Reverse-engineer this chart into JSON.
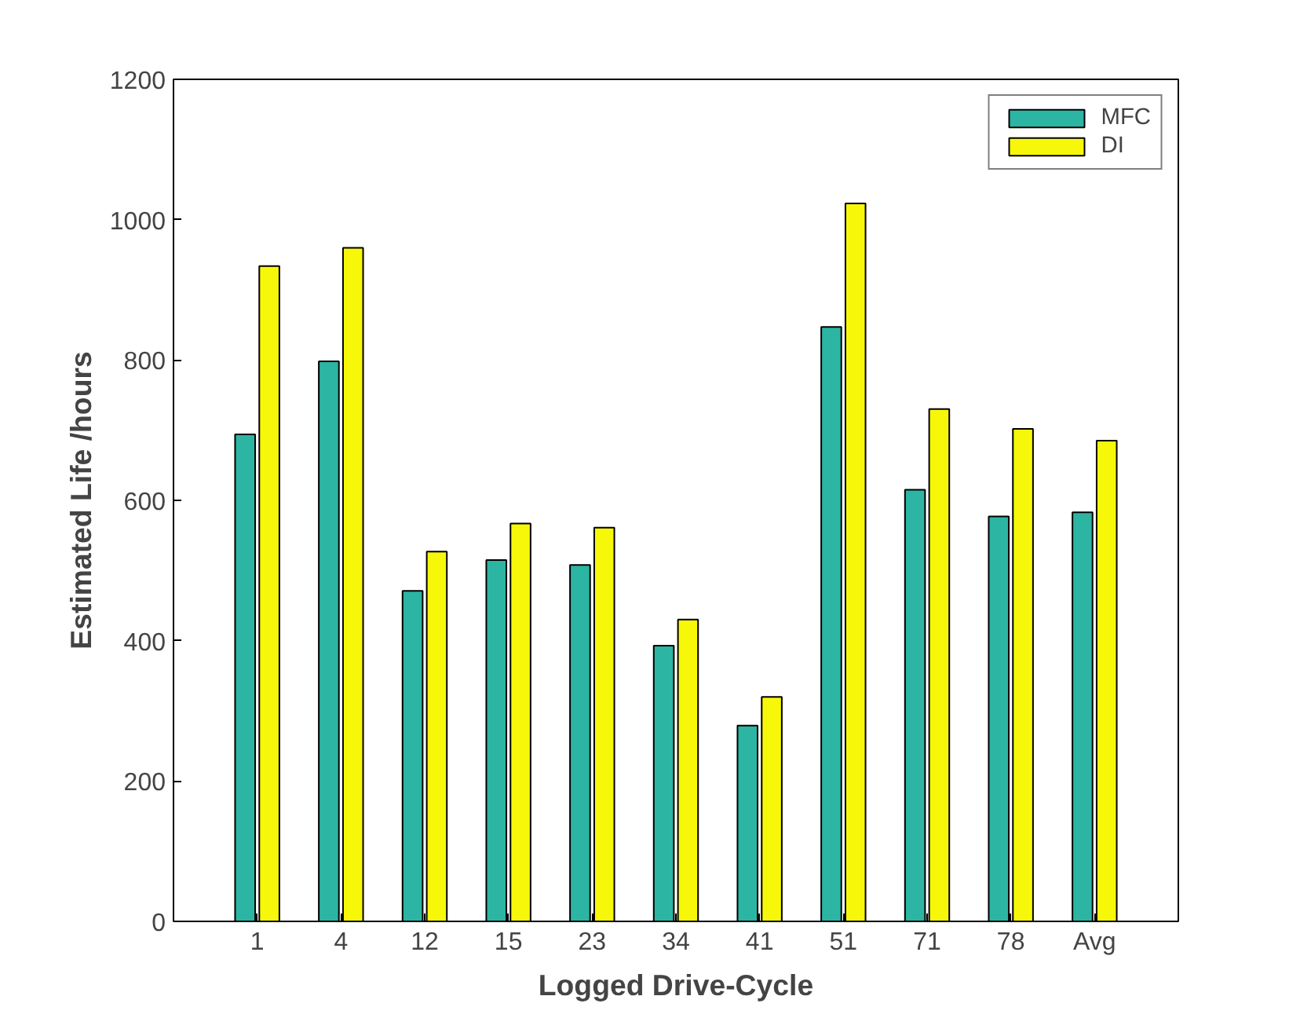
{
  "chart_data": {
    "type": "bar",
    "xlabel": "Logged Drive-Cycle",
    "ylabel": "Estimated Life /hours",
    "categories": [
      "1",
      "4",
      "12",
      "15",
      "23",
      "34",
      "41",
      "51",
      "71",
      "78",
      "Avg"
    ],
    "series": [
      {
        "name": "MFC",
        "color": "#2cb5a2",
        "values": [
          694,
          798,
          471,
          515,
          508,
          393,
          279,
          847,
          615,
          577,
          583
        ]
      },
      {
        "name": "DI",
        "color": "#f7f70a",
        "values": [
          934,
          960,
          527,
          567,
          561,
          430,
          320,
          1023,
          730,
          702,
          685
        ]
      }
    ],
    "ylim": [
      0,
      1200
    ],
    "yticks": [
      0,
      200,
      400,
      600,
      800,
      1000,
      1200
    ],
    "grid": false,
    "legend": "top right"
  }
}
